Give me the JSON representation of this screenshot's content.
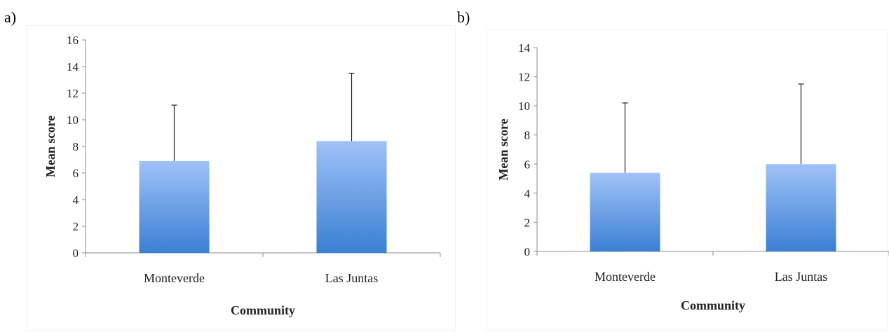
{
  "panels": [
    {
      "label": "a)"
    },
    {
      "label": "b)"
    }
  ],
  "colors": {
    "bar_top": "#9fc2f7",
    "bar_bottom": "#3b7fd4",
    "axis": "#8a8a8a",
    "error_bar": "#222222"
  },
  "chart_data": [
    {
      "type": "bar",
      "categories": [
        "Monteverde",
        "Las Juntas"
      ],
      "values": [
        6.9,
        8.4
      ],
      "error_upper": [
        11.1,
        13.5
      ],
      "xlabel": "Community",
      "ylabel": "Mean score",
      "ylim": [
        0,
        16
      ],
      "yticks": [
        "0",
        "2",
        "4",
        "6",
        "8",
        "10",
        "12",
        "14",
        "16"
      ],
      "grid": false,
      "legend": "none"
    },
    {
      "type": "bar",
      "categories": [
        "Monteverde",
        "Las Juntas"
      ],
      "values": [
        5.4,
        6.0
      ],
      "error_upper": [
        10.2,
        11.5
      ],
      "xlabel": "Community",
      "ylabel": "Mean score",
      "ylim": [
        0,
        14
      ],
      "yticks": [
        "0",
        "2",
        "4",
        "6",
        "8",
        "10",
        "12",
        "14"
      ],
      "grid": false,
      "legend": "none"
    }
  ]
}
